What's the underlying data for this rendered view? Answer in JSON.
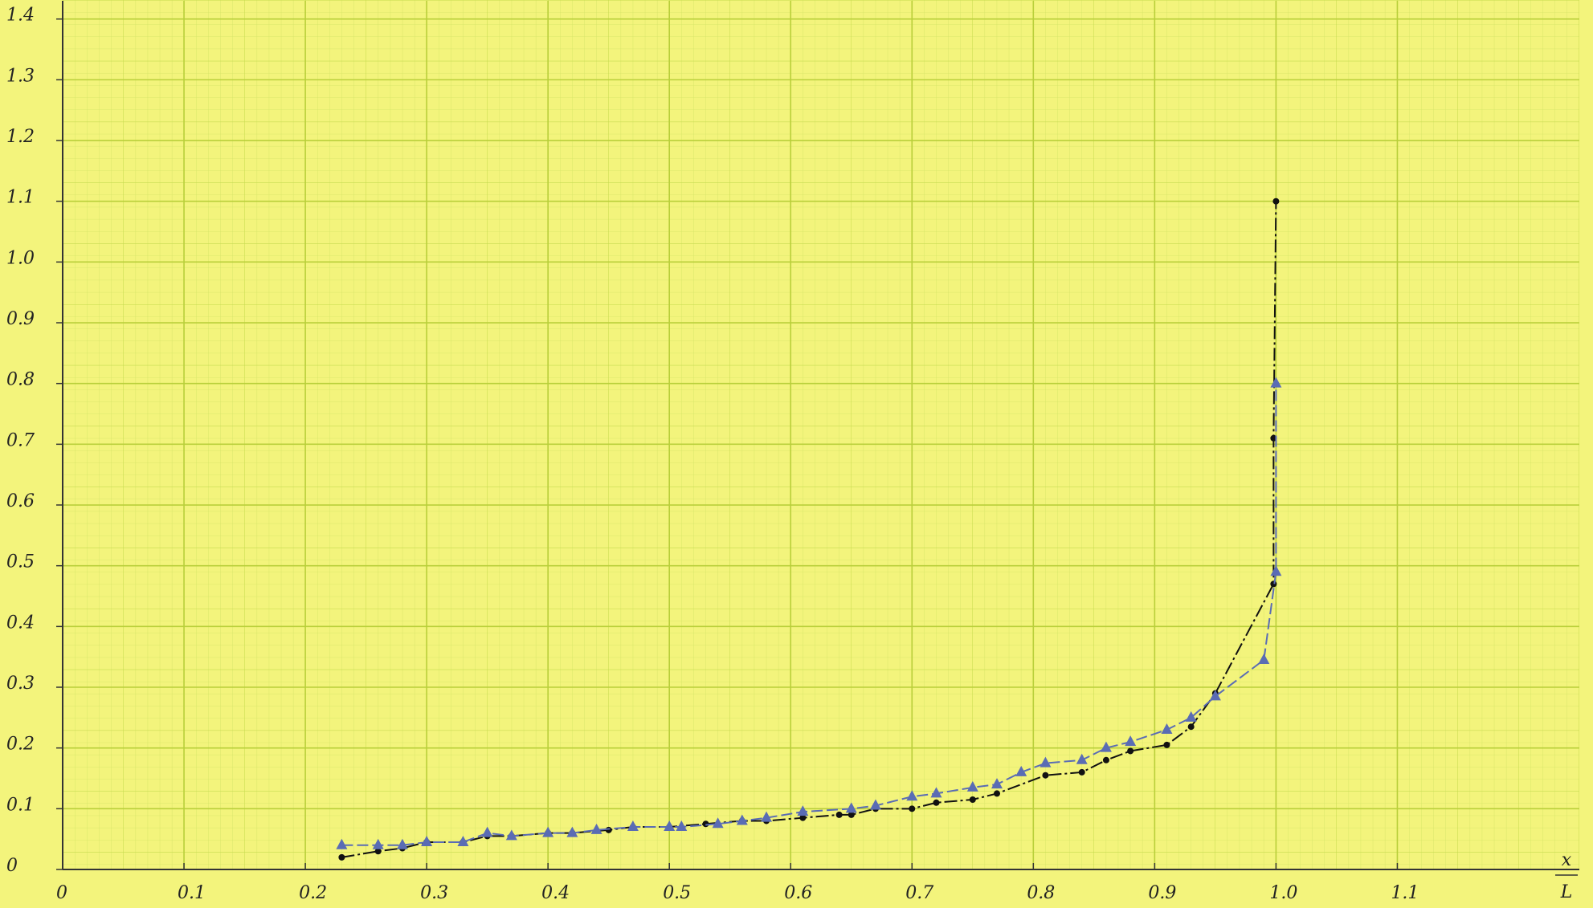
{
  "chart_data": {
    "type": "line",
    "x_label": [
      "x",
      "L"
    ],
    "xlim": [
      0,
      1.25
    ],
    "ylim": [
      0,
      1.43
    ],
    "xticks": [
      0,
      0.1,
      0.2,
      0.3,
      0.4,
      0.5,
      0.6,
      0.7,
      0.8,
      0.9,
      {
        "value": 1,
        "label": "1.0"
      },
      1.1
    ],
    "yticks": [
      0,
      0.1,
      0.2,
      0.3,
      0.4,
      0.5,
      0.6,
      0.7,
      0.8,
      0.9,
      {
        "value": 1,
        "label": "1.0"
      },
      1.1,
      1.2,
      1.3,
      1.4
    ],
    "grid": true,
    "series": [
      {
        "marker": "dot",
        "color": "#111111",
        "x": [
          0.23,
          0.26,
          0.28,
          0.3,
          0.33,
          0.35,
          0.37,
          0.4,
          0.42,
          0.45,
          0.47,
          0.5,
          0.53,
          0.56,
          0.58,
          0.61,
          0.64,
          0.65,
          0.67,
          0.7,
          0.72,
          0.75,
          0.77,
          0.81,
          0.84,
          0.86,
          0.88,
          0.91,
          0.93,
          0.95,
          0.998,
          0.998,
          1.0
        ],
        "values": [
          0.02,
          0.03,
          0.035,
          0.045,
          0.045,
          0.055,
          0.055,
          0.06,
          0.06,
          0.065,
          0.07,
          0.07,
          0.075,
          0.08,
          0.08,
          0.085,
          0.09,
          0.09,
          0.1,
          0.1,
          0.11,
          0.115,
          0.125,
          0.155,
          0.16,
          0.18,
          0.195,
          0.205,
          0.235,
          0.29,
          0.47,
          0.71,
          1.1
        ]
      },
      {
        "marker": "triangle",
        "color": "#5a6cb4",
        "x": [
          0.23,
          0.26,
          0.28,
          0.3,
          0.33,
          0.35,
          0.37,
          0.4,
          0.42,
          0.44,
          0.47,
          0.5,
          0.51,
          0.54,
          0.56,
          0.58,
          0.61,
          0.65,
          0.67,
          0.7,
          0.72,
          0.75,
          0.77,
          0.79,
          0.81,
          0.84,
          0.86,
          0.88,
          0.91,
          0.93,
          0.95,
          0.99,
          1.0,
          1.0
        ],
        "values": [
          0.04,
          0.04,
          0.04,
          0.045,
          0.045,
          0.06,
          0.055,
          0.06,
          0.06,
          0.065,
          0.07,
          0.07,
          0.07,
          0.075,
          0.08,
          0.085,
          0.095,
          0.1,
          0.105,
          0.12,
          0.125,
          0.135,
          0.14,
          0.16,
          0.175,
          0.18,
          0.2,
          0.21,
          0.23,
          0.25,
          0.285,
          0.345,
          0.49,
          0.8
        ]
      }
    ]
  }
}
